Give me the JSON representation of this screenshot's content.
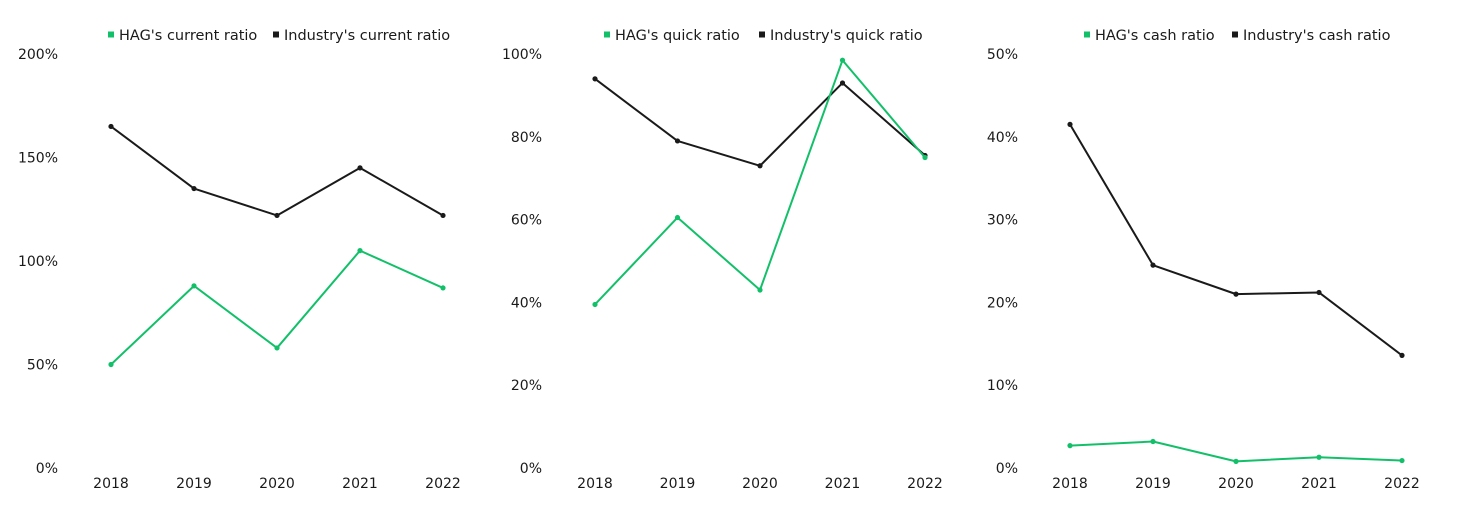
{
  "colors": {
    "hag": "#13c06a",
    "industry": "#1a1a1a"
  },
  "chart_data": [
    {
      "type": "line",
      "x": [
        "2018",
        "2019",
        "2020",
        "2021",
        "2022"
      ],
      "ylim": [
        0,
        200
      ],
      "yticks": [
        "0%",
        "50%",
        "100%",
        "150%",
        "200%"
      ],
      "legend_position": "top",
      "grid": false,
      "series": [
        {
          "name": "HAG's current ratio",
          "color_key": "hag",
          "values": [
            50,
            88,
            58,
            105,
            87
          ]
        },
        {
          "name": "Industry's current ratio",
          "color_key": "industry",
          "values": [
            165,
            135,
            122,
            145,
            122
          ]
        }
      ]
    },
    {
      "type": "line",
      "x": [
        "2018",
        "2019",
        "2020",
        "2021",
        "2022"
      ],
      "ylim": [
        0,
        100
      ],
      "yticks": [
        "0%",
        "20%",
        "40%",
        "60%",
        "80%",
        "100%"
      ],
      "legend_position": "top",
      "grid": false,
      "series": [
        {
          "name": "HAG's quick ratio",
          "color_key": "hag",
          "values": [
            39.5,
            60.5,
            43,
            98.5,
            75
          ]
        },
        {
          "name": "Industry's quick ratio",
          "color_key": "industry",
          "values": [
            94,
            79,
            73,
            93,
            75.5
          ]
        }
      ]
    },
    {
      "type": "line",
      "x": [
        "2018",
        "2019",
        "2020",
        "2021",
        "2022"
      ],
      "ylim": [
        0,
        50
      ],
      "yticks": [
        "0%",
        "10%",
        "20%",
        "30%",
        "40%",
        "50%"
      ],
      "legend_position": "top",
      "grid": false,
      "series": [
        {
          "name": "HAG's cash ratio",
          "color_key": "hag",
          "values": [
            2.7,
            3.2,
            0.8,
            1.3,
            0.9
          ]
        },
        {
          "name": "Industry's cash ratio",
          "color_key": "industry",
          "values": [
            41.5,
            24.5,
            21,
            21.2,
            13.6
          ]
        }
      ]
    }
  ]
}
